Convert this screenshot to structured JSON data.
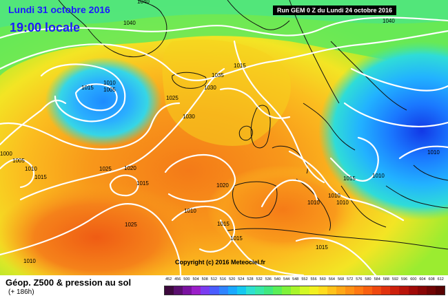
{
  "header": {
    "date": "Lundi 31 octobre 2016",
    "local_time": "19:00 locale",
    "run_info": "Run GEM 0 Z du Lundi 24 octobre 2016"
  },
  "copyright": "Copyright (c) 2016 Meteociel.fr",
  "footer": {
    "title": "Géop. Z500 & pression au sol",
    "subtitle": "(+ 186h)"
  },
  "scale": {
    "labels": [
      "452",
      "456",
      "500",
      "504",
      "508",
      "512",
      "516",
      "520",
      "524",
      "528",
      "532",
      "536",
      "540",
      "544",
      "548",
      "552",
      "556",
      "560",
      "564",
      "568",
      "572",
      "576",
      "580",
      "584",
      "588",
      "592",
      "596",
      "600",
      "604",
      "608",
      "612"
    ],
    "colors": [
      "#3d0a3d",
      "#5a0f6e",
      "#7a12a0",
      "#9a1ec8",
      "#7b3cf0",
      "#4a5cff",
      "#2f84ff",
      "#1aa8ff",
      "#15c8f0",
      "#2ee0d0",
      "#38e8a8",
      "#40e880",
      "#5aef58",
      "#7ef23a",
      "#a8f52a",
      "#d2f825",
      "#f2f020",
      "#ffdc1e",
      "#ffc21a",
      "#ffa816",
      "#ff9014",
      "#ff7812",
      "#f86010",
      "#ee4810",
      "#e0320e",
      "#cc200c",
      "#b8140a",
      "#a00a08",
      "#880606",
      "#700404",
      "#580202"
    ]
  },
  "map": {
    "pressure_labels": [
      {
        "text": "1040"
      },
      {
        "text": "1040"
      },
      {
        "text": "1040"
      },
      {
        "text": "1035"
      },
      {
        "text": "1030"
      },
      {
        "text": "1030"
      },
      {
        "text": "1025"
      },
      {
        "text": "1010"
      },
      {
        "text": "1005"
      },
      {
        "text": "1015"
      },
      {
        "text": "1000"
      },
      {
        "text": "1005"
      },
      {
        "text": "1010"
      },
      {
        "text": "1015"
      },
      {
        "text": "1025"
      },
      {
        "text": "1020"
      },
      {
        "text": "1015"
      },
      {
        "text": "1020"
      },
      {
        "text": "1010"
      },
      {
        "text": "1025"
      },
      {
        "text": "1015"
      },
      {
        "text": "1015"
      },
      {
        "text": "1010"
      },
      {
        "text": "1015"
      },
      {
        "text": "1010"
      },
      {
        "text": "1010"
      },
      {
        "text": "1010"
      },
      {
        "text": "1010"
      },
      {
        "text": "1015"
      },
      {
        "text": "1010"
      },
      {
        "text": "1015"
      }
    ]
  }
}
